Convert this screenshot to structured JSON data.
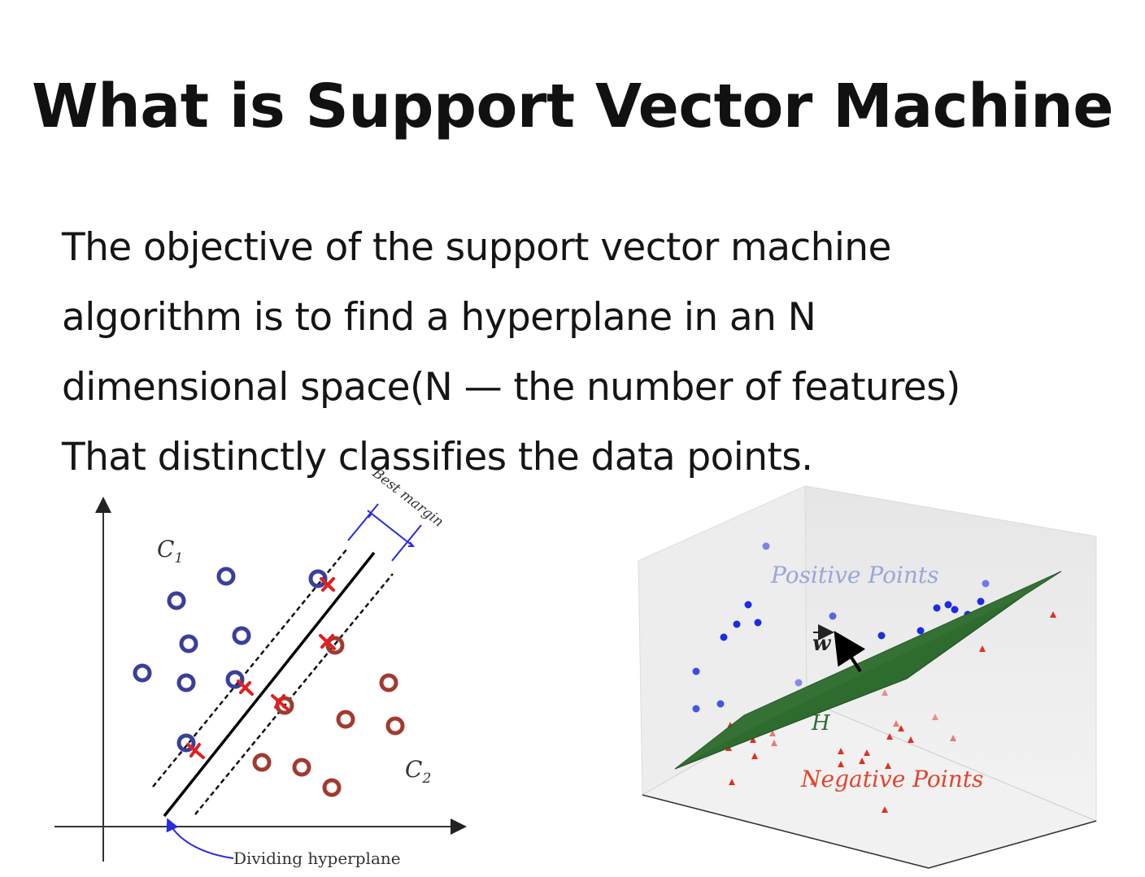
{
  "slide": {
    "title": "What is Support Vector Machine",
    "body_lines": [
      "The objective of the support vector machine",
      "algorithm is to find a hyperplane in an N",
      "dimensional space(N — the number of features)",
      "That distinctly classifies the data points."
    ]
  },
  "figure_2d": {
    "class1_label": "C",
    "class1_sub": "1",
    "class2_label": "C",
    "class2_sub": "2",
    "margin_label": "Best margin",
    "hyperplane_label": "Dividing hyperplane",
    "colors": {
      "class1": "#3a3f9a",
      "class2": "#a23a30",
      "support": "#e02020"
    }
  },
  "figure_3d": {
    "positive_label": "Positive Points",
    "negative_label": "Negative Points",
    "vector_label": "w",
    "plane_label": "H",
    "colors": {
      "positive": "#1a2ee0",
      "negative": "#e03020",
      "plane": "#2e6b2e",
      "positive_text": "#9aa6d8",
      "negative_text": "#e0452f"
    }
  }
}
